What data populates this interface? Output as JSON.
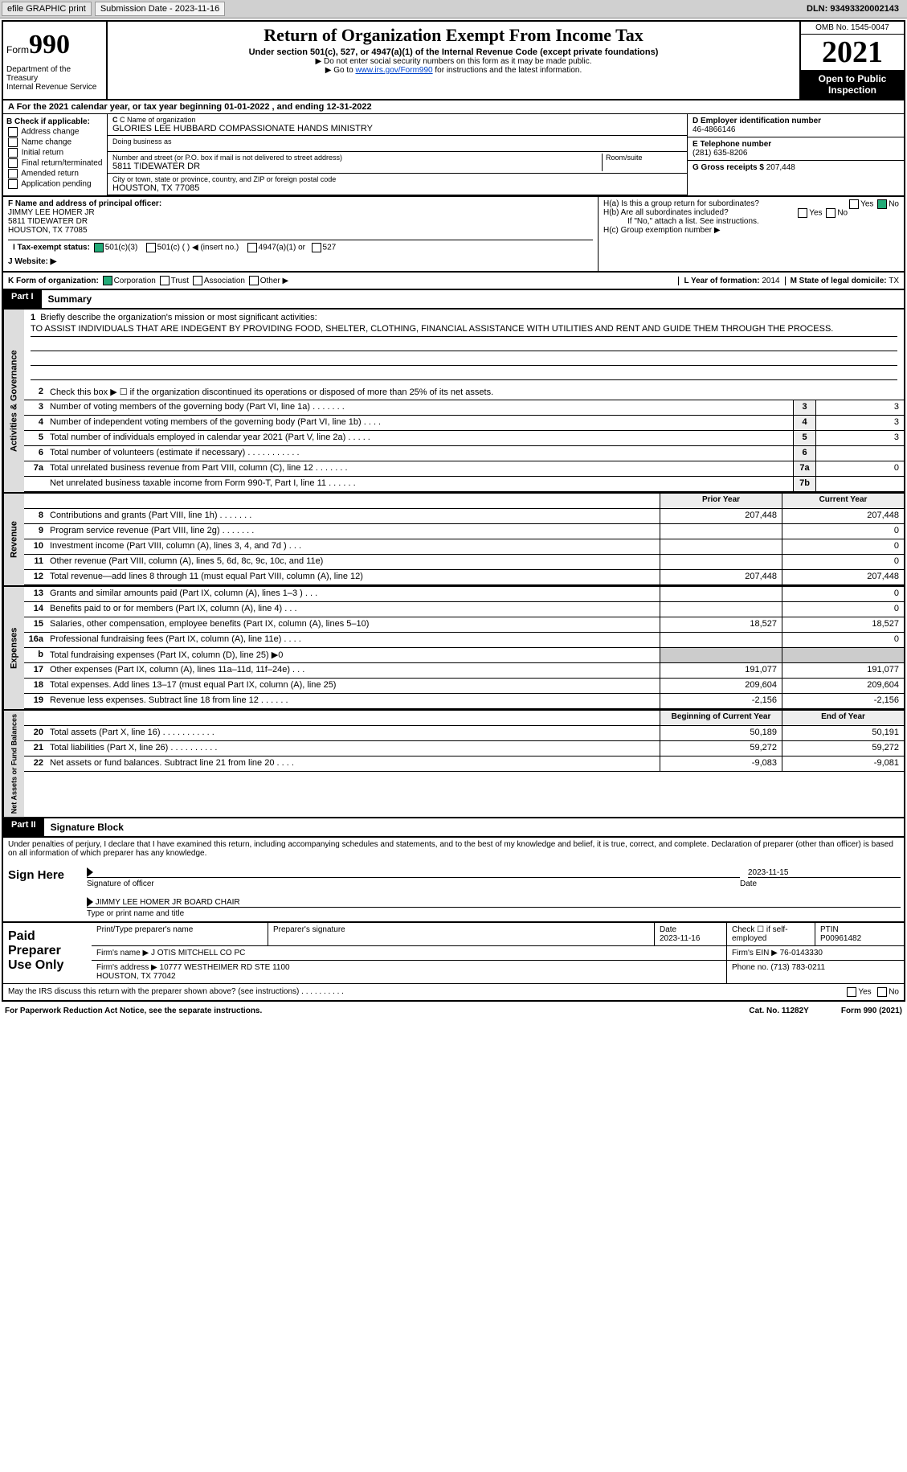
{
  "toolbar": {
    "efile": "efile GRAPHIC print",
    "submission_label": "Submission Date - 2023-11-16",
    "dln": "DLN: 93493320002143"
  },
  "header": {
    "form_word": "Form",
    "form_number": "990",
    "title": "Return of Organization Exempt From Income Tax",
    "subtitle": "Under section 501(c), 527, or 4947(a)(1) of the Internal Revenue Code (except private foundations)",
    "note1": "▶ Do not enter social security numbers on this form as it may be made public.",
    "note2_prefix": "▶ Go to ",
    "note2_link": "www.irs.gov/Form990",
    "note2_suffix": " for instructions and the latest information.",
    "dept": "Department of the Treasury\nInternal Revenue Service",
    "omb": "OMB No. 1545-0047",
    "year": "2021",
    "open": "Open to Public Inspection"
  },
  "row_a": "A For the 2021 calendar year, or tax year beginning 01-01-2022   , and ending 12-31-2022",
  "section_b": {
    "label": "B Check if applicable:",
    "items": [
      "Address change",
      "Name change",
      "Initial return",
      "Final return/terminated",
      "Amended return",
      "Application pending"
    ]
  },
  "section_c": {
    "name_label": "C Name of organization",
    "name": "GLORIES LEE HUBBARD COMPASSIONATE HANDS MINISTRY",
    "dba_label": "Doing business as",
    "dba": "",
    "street_label": "Number and street (or P.O. box if mail is not delivered to street address)",
    "room_label": "Room/suite",
    "street": "5811 TIDEWATER DR",
    "city_label": "City or town, state or province, country, and ZIP or foreign postal code",
    "city": "HOUSTON, TX  77085"
  },
  "section_d": {
    "ein_label": "D Employer identification number",
    "ein": "46-4866146",
    "phone_label": "E Telephone number",
    "phone": "(281) 635-8206",
    "gross_label": "G Gross receipts $",
    "gross": "207,448"
  },
  "section_f": {
    "label": "F Name and address of principal officer:",
    "name": "JIMMY LEE HOMER JR",
    "addr1": "5811 TIDEWATER DR",
    "addr2": "HOUSTON, TX  77085"
  },
  "section_h": {
    "ha": "H(a)  Is this a group return for subordinates?",
    "hb": "H(b)  Are all subordinates included?",
    "hb_note": "If \"No,\" attach a list. See instructions.",
    "hc": "H(c)  Group exemption number ▶",
    "ha_no_checked": true
  },
  "section_i": {
    "label": "I   Tax-exempt status:",
    "opt1": "501(c)(3)",
    "opt2": "501(c) (  ) ◀ (insert no.)",
    "opt3": "4947(a)(1) or",
    "opt4": "527",
    "checked": "501(c)(3)"
  },
  "section_j": {
    "label": "J   Website: ▶",
    "value": ""
  },
  "row_k": {
    "label": "K Form of organization:",
    "opts": [
      "Corporation",
      "Trust",
      "Association",
      "Other ▶"
    ],
    "checked": "Corporation",
    "l_label": "L Year of formation:",
    "l_value": "2014",
    "m_label": "M State of legal domicile:",
    "m_value": "TX"
  },
  "part1": {
    "tag": "Part I",
    "title": "Summary",
    "line1_label": "Briefly describe the organization's mission or most significant activities:",
    "mission": "TO ASSIST INDIVIDUALS THAT ARE INDEGENT BY PROVIDING FOOD, SHELTER, CLOTHING, FINANCIAL ASSISTANCE WITH UTILITIES AND RENT AND GUIDE THEM THROUGH THE PROCESS.",
    "line2": "Check this box ▶ ☐ if the organization discontinued its operations or disposed of more than 25% of its net assets.",
    "gov_lines": [
      {
        "n": "3",
        "t": "Number of voting members of the governing body (Part VI, line 1a)  .   .   .   .   .   .   .",
        "box": "3",
        "v": "3"
      },
      {
        "n": "4",
        "t": "Number of independent voting members of the governing body (Part VI, line 1b)  .   .   .   .",
        "box": "4",
        "v": "3"
      },
      {
        "n": "5",
        "t": "Total number of individuals employed in calendar year 2021 (Part V, line 2a)  .   .   .   .   .",
        "box": "5",
        "v": "3"
      },
      {
        "n": "6",
        "t": "Total number of volunteers (estimate if necessary)   .   .   .   .   .   .   .   .   .   .   .",
        "box": "6",
        "v": ""
      },
      {
        "n": "7a",
        "t": "Total unrelated business revenue from Part VIII, column (C), line 12   .   .   .   .   .   .   .",
        "box": "7a",
        "v": "0"
      },
      {
        "n": "",
        "t": "Net unrelated business taxable income from Form 990-T, Part I, line 11  .   .   .   .   .   .",
        "box": "7b",
        "v": ""
      }
    ],
    "col_headers": {
      "prior": "Prior Year",
      "current": "Current Year"
    },
    "revenue_lines": [
      {
        "n": "8",
        "t": "Contributions and grants (Part VIII, line 1h)   .   .   .   .   .   .   .",
        "py": "207,448",
        "cy": "207,448"
      },
      {
        "n": "9",
        "t": "Program service revenue (Part VIII, line 2g)   .   .   .   .   .   .   .",
        "py": "",
        "cy": "0"
      },
      {
        "n": "10",
        "t": "Investment income (Part VIII, column (A), lines 3, 4, and 7d )   .   .   .",
        "py": "",
        "cy": "0"
      },
      {
        "n": "11",
        "t": "Other revenue (Part VIII, column (A), lines 5, 6d, 8c, 9c, 10c, and 11e)",
        "py": "",
        "cy": "0"
      },
      {
        "n": "12",
        "t": "Total revenue—add lines 8 through 11 (must equal Part VIII, column (A), line 12)",
        "py": "207,448",
        "cy": "207,448"
      }
    ],
    "expense_lines": [
      {
        "n": "13",
        "t": "Grants and similar amounts paid (Part IX, column (A), lines 1–3 )   .   .   .",
        "py": "",
        "cy": "0"
      },
      {
        "n": "14",
        "t": "Benefits paid to or for members (Part IX, column (A), line 4)   .   .   .",
        "py": "",
        "cy": "0"
      },
      {
        "n": "15",
        "t": "Salaries, other compensation, employee benefits (Part IX, column (A), lines 5–10)",
        "py": "18,527",
        "cy": "18,527"
      },
      {
        "n": "16a",
        "t": "Professional fundraising fees (Part IX, column (A), line 11e)   .   .   .   .",
        "py": "",
        "cy": "0"
      },
      {
        "n": "b",
        "t": "Total fundraising expenses (Part IX, column (D), line 25) ▶0",
        "py": "SHADE",
        "cy": "SHADE"
      },
      {
        "n": "17",
        "t": "Other expenses (Part IX, column (A), lines 11a–11d, 11f–24e)   .   .   .",
        "py": "191,077",
        "cy": "191,077"
      },
      {
        "n": "18",
        "t": "Total expenses. Add lines 13–17 (must equal Part IX, column (A), line 25)",
        "py": "209,604",
        "cy": "209,604"
      },
      {
        "n": "19",
        "t": "Revenue less expenses. Subtract line 18 from line 12  .   .   .   .   .   .",
        "py": "-2,156",
        "cy": "-2,156"
      }
    ],
    "na_headers": {
      "boy": "Beginning of Current Year",
      "eoy": "End of Year"
    },
    "na_lines": [
      {
        "n": "20",
        "t": "Total assets (Part X, line 16)  .   .   .   .   .   .   .   .   .   .   .",
        "py": "50,189",
        "cy": "50,191"
      },
      {
        "n": "21",
        "t": "Total liabilities (Part X, line 26)  .   .   .   .   .   .   .   .   .   .",
        "py": "59,272",
        "cy": "59,272"
      },
      {
        "n": "22",
        "t": "Net assets or fund balances. Subtract line 21 from line 20  .   .   .   .",
        "py": "-9,083",
        "cy": "-9,081"
      }
    ],
    "vtabs": {
      "gov": "Activities & Governance",
      "rev": "Revenue",
      "exp": "Expenses",
      "na": "Net Assets or Fund Balances"
    }
  },
  "part2": {
    "tag": "Part II",
    "title": "Signature Block",
    "decl": "Under penalties of perjury, I declare that I have examined this return, including accompanying schedules and statements, and to the best of my knowledge and belief, it is true, correct, and complete. Declaration of preparer (other than officer) is based on all information of which preparer has any knowledge.",
    "sign_here": "Sign Here",
    "sig_of_officer": "Signature of officer",
    "sig_date": "2023-11-15",
    "date_label": "Date",
    "officer_name": "JIMMY LEE HOMER JR  BOARD CHAIR",
    "officer_label": "Type or print name and title",
    "paid": "Paid Preparer Use Only",
    "prep_name_label": "Print/Type preparer's name",
    "prep_sig_label": "Preparer's signature",
    "prep_date_label": "Date",
    "prep_date": "2023-11-16",
    "self_emp": "Check ☐ if self-employed",
    "ptin_label": "PTIN",
    "ptin": "P00961482",
    "firm_name_label": "Firm's name    ▶",
    "firm_name": "J OTIS MITCHELL CO PC",
    "firm_ein_label": "Firm's EIN ▶",
    "firm_ein": "76-0143330",
    "firm_addr_label": "Firm's address ▶",
    "firm_addr": "10777 WESTHEIMER RD STE 1100\nHOUSTON, TX  77042",
    "firm_phone_label": "Phone no.",
    "firm_phone": "(713) 783-0211",
    "may_irs": "May the IRS discuss this return with the preparer shown above? (see instructions)   .   .   .   .   .   .   .   .   .   .",
    "yes": "Yes",
    "no": "No"
  },
  "footer": {
    "pra": "For Paperwork Reduction Act Notice, see the separate instructions.",
    "cat": "Cat. No. 11282Y",
    "form": "Form 990 (2021)"
  },
  "colors": {
    "accent": "#2a7fba",
    "black": "#000000",
    "toolbar_bg": "#d0d0d0",
    "shade": "#cccccc"
  }
}
